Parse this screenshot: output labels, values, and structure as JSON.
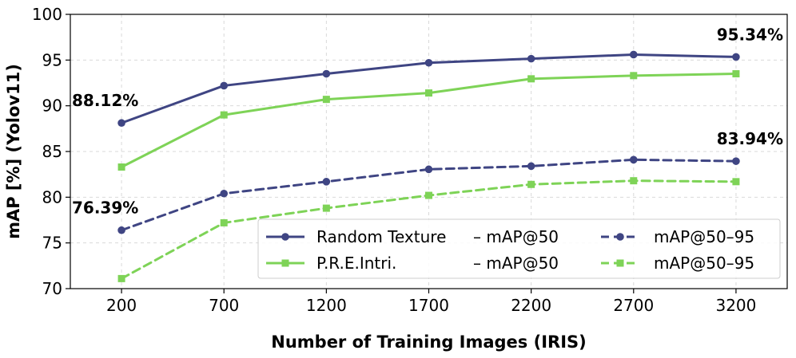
{
  "chart_data": {
    "type": "line",
    "xlabel": "Number of Training Images (IRIS)",
    "ylabel": "mAP [%] (Yolov11)",
    "categories": [
      "200",
      "700",
      "1200",
      "1700",
      "2200",
      "2700",
      "3200"
    ],
    "x": [
      200,
      700,
      1200,
      1700,
      2200,
      2700,
      3200
    ],
    "xlim": [
      -50,
      3450
    ],
    "ylim": [
      70,
      100
    ],
    "yticks": [
      "70",
      "75",
      "80",
      "85",
      "90",
      "95",
      "100"
    ],
    "grid": true,
    "legend_position": "bottom-right",
    "series": [
      {
        "name": "Random Texture – mAP@50",
        "legend_label": "Random Texture",
        "legend_metric": "– mAP@50",
        "color": "#3f4583",
        "style": "solid",
        "marker": "circle",
        "values": [
          88.12,
          92.2,
          93.5,
          94.7,
          95.15,
          95.6,
          95.34
        ]
      },
      {
        "name": "P.R.E.Intri. – mAP@50",
        "legend_label": "P.R.E.Intri.",
        "legend_metric": "– mAP@50",
        "color": "#7ed357",
        "style": "solid",
        "marker": "square",
        "values": [
          83.3,
          89.0,
          90.7,
          91.4,
          92.95,
          93.3,
          93.5
        ]
      },
      {
        "name": "Random Texture mAP@50–95",
        "legend_label": "mAP@50–95",
        "color": "#3f4583",
        "style": "dashed",
        "marker": "circle",
        "values": [
          76.39,
          80.4,
          81.7,
          83.05,
          83.4,
          84.1,
          83.94
        ]
      },
      {
        "name": "P.R.E.Intri. mAP@50–95",
        "legend_label": "mAP@50–95",
        "color": "#7ed357",
        "style": "dashed",
        "marker": "square",
        "values": [
          71.1,
          77.2,
          78.8,
          80.2,
          81.4,
          81.8,
          81.7
        ]
      }
    ],
    "annotations": [
      {
        "text": "88.12%",
        "x": 200,
        "y": 88.12,
        "anchor": "start"
      },
      {
        "text": "95.34%",
        "x": 3200,
        "y": 95.34,
        "anchor": "end"
      },
      {
        "text": "76.39%",
        "x": 200,
        "y": 76.39,
        "anchor": "start"
      },
      {
        "text": "83.94%",
        "x": 3200,
        "y": 83.94,
        "anchor": "end"
      }
    ]
  }
}
